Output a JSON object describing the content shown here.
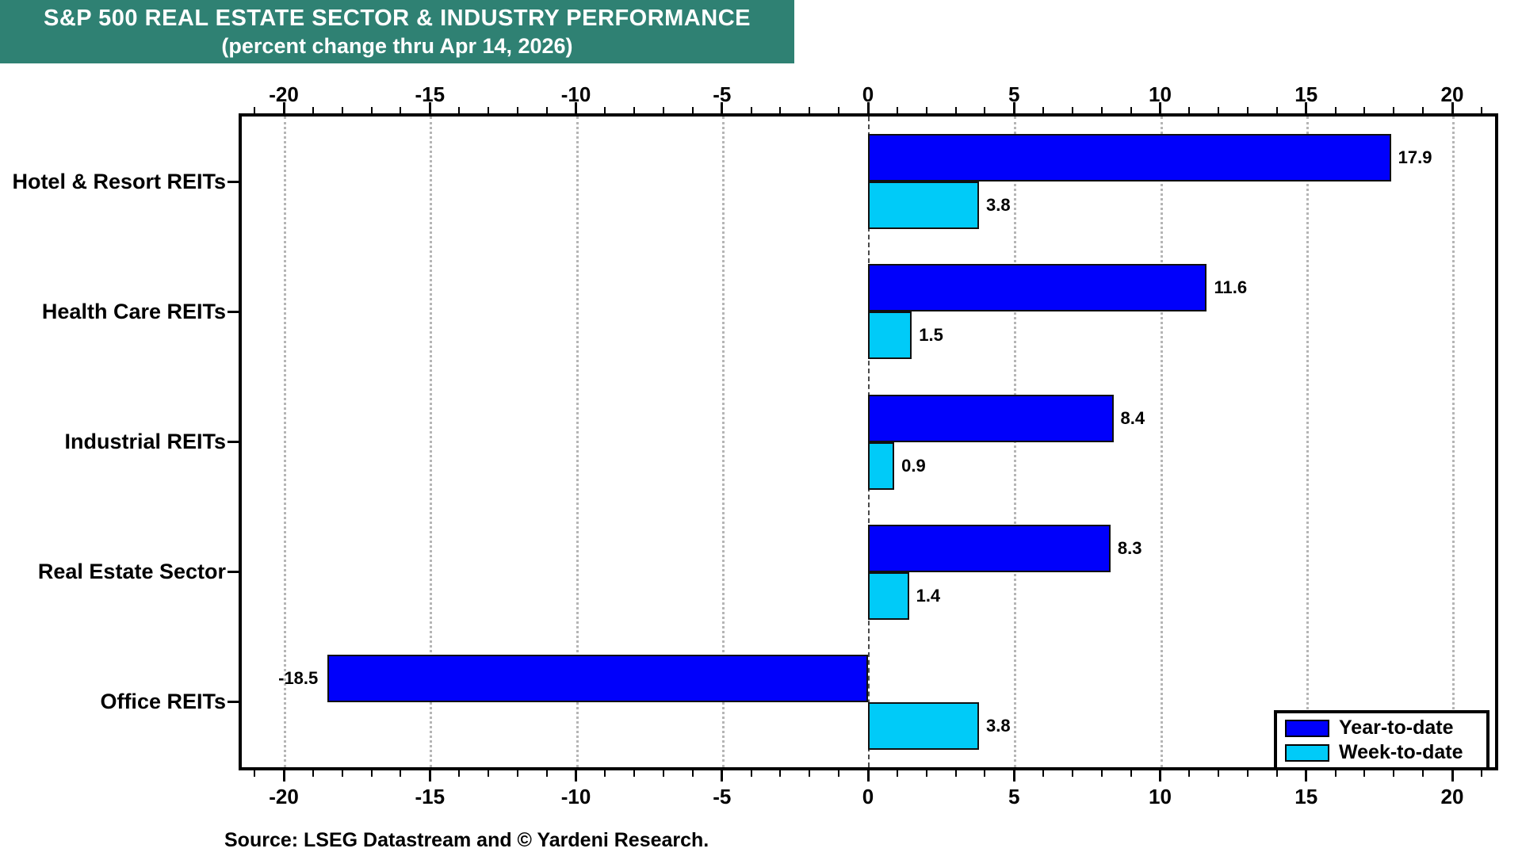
{
  "banner": {
    "line1": "S&P 500 REAL ESTATE SECTOR & INDUSTRY PERFORMANCE",
    "line2": "(percent change thru Apr 14, 2026)",
    "background_color": "#2F8173"
  },
  "source_note": "Source: LSEG Datastream and © Yardeni Research.",
  "chart_data": {
    "type": "bar",
    "orientation": "horizontal",
    "title": "S&P 500 REAL ESTATE SECTOR & INDUSTRY PERFORMANCE (percent change thru Apr 14, 2026)",
    "categories": [
      "Hotel & Resort REITs",
      "Health Care REITs",
      "Industrial REITs",
      "Real Estate Sector",
      "Office REITs"
    ],
    "series": [
      {
        "name": "Year-to-date",
        "color": "#0000FB",
        "values": [
          17.9,
          11.6,
          8.4,
          8.3,
          -18.5
        ]
      },
      {
        "name": "Week-to-date",
        "color": "#00CBF8",
        "values": [
          3.8,
          1.5,
          0.9,
          1.4,
          3.8
        ]
      }
    ],
    "value_labels": [
      [
        "17.9",
        "11.6",
        "8.4",
        "8.3",
        "-18.5"
      ],
      [
        "3.8",
        "1.5",
        "0.9",
        "1.4",
        "3.8"
      ]
    ],
    "xlim": [
      -21.4,
      21.4
    ],
    "x_major_ticks": [
      -20,
      -15,
      -10,
      -5,
      0,
      5,
      10,
      15,
      20
    ],
    "x_tick_labels": [
      "-20",
      "-15",
      "-10",
      "-5",
      "0",
      "5",
      "10",
      "15",
      "20"
    ],
    "x_minor_tick_step": 1,
    "grid": "vertical dotted gridlines at major ticks, dashed line at zero",
    "axis_labels_position": "top and bottom",
    "legend_position": "bottom-right"
  }
}
